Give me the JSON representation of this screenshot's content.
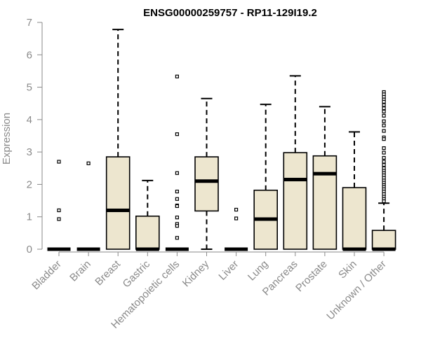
{
  "chart_data": {
    "type": "box",
    "title": "ENSG00000259757 - RP11-129I19.2",
    "xlabel": "",
    "ylabel": "Expression",
    "ylim": [
      0,
      7
    ],
    "yticks": [
      0,
      1,
      2,
      3,
      4,
      5,
      6,
      7
    ],
    "grid": false,
    "colors": {
      "box_fill": "#ede6cf",
      "box_stroke": "#000000",
      "axis": "#8a8a8a"
    },
    "categories": [
      "Bladder",
      "Brain",
      "Breast",
      "Gastric",
      "Hematopoietic cells",
      "Kidney",
      "Liver",
      "Lung",
      "Pancreas",
      "Prostate",
      "Skin",
      "Unknown / Other"
    ],
    "boxes": [
      {
        "q1": 0,
        "median": 0,
        "q3": 0,
        "whisker_low": 0,
        "whisker_high": 0,
        "outliers": [
          2.7,
          1.2,
          0.93
        ]
      },
      {
        "q1": 0,
        "median": 0,
        "q3": 0,
        "whisker_low": 0,
        "whisker_high": 0,
        "outliers": [
          2.65
        ]
      },
      {
        "q1": 0,
        "median": 1.2,
        "q3": 2.85,
        "whisker_low": 0,
        "whisker_high": 6.78,
        "outliers": []
      },
      {
        "q1": 0,
        "median": 0,
        "q3": 1.02,
        "whisker_low": 0,
        "whisker_high": 2.12,
        "outliers": []
      },
      {
        "q1": 0,
        "median": 0,
        "q3": 0,
        "whisker_low": 0,
        "whisker_high": 0,
        "outliers": [
          5.33,
          3.55,
          2.35,
          1.78,
          1.55,
          1.35,
          1.33,
          0.98,
          0.78,
          0.72,
          0.35
        ]
      },
      {
        "q1": 1.18,
        "median": 2.1,
        "q3": 2.85,
        "whisker_low": 0,
        "whisker_high": 4.65,
        "outliers": []
      },
      {
        "q1": 0,
        "median": 0,
        "q3": 0,
        "whisker_low": 0,
        "whisker_high": 0,
        "outliers": [
          1.22,
          0.95
        ]
      },
      {
        "q1": 0,
        "median": 0.93,
        "q3": 1.82,
        "whisker_low": 0,
        "whisker_high": 4.47,
        "outliers": []
      },
      {
        "q1": 0,
        "median": 2.15,
        "q3": 2.98,
        "whisker_low": 0,
        "whisker_high": 5.35,
        "outliers": []
      },
      {
        "q1": 0,
        "median": 2.33,
        "q3": 2.88,
        "whisker_low": 0,
        "whisker_high": 4.4,
        "outliers": []
      },
      {
        "q1": 0,
        "median": 0,
        "q3": 1.9,
        "whisker_low": 0,
        "whisker_high": 3.62,
        "outliers": []
      },
      {
        "q1": 0,
        "median": 0,
        "q3": 0.58,
        "whisker_low": 0,
        "whisker_high": 1.42,
        "outliers": [
          4.85,
          4.78,
          4.7,
          4.62,
          4.55,
          4.45,
          4.35,
          4.25,
          4.12,
          3.95,
          3.82,
          3.65,
          3.45,
          3.4,
          3.12,
          2.98,
          2.82,
          2.7,
          2.6,
          2.5,
          2.42,
          2.35,
          2.28,
          2.2,
          2.12,
          2.05,
          1.98,
          1.92,
          1.85,
          1.78,
          1.7,
          1.62,
          1.55,
          1.48
        ]
      }
    ]
  }
}
